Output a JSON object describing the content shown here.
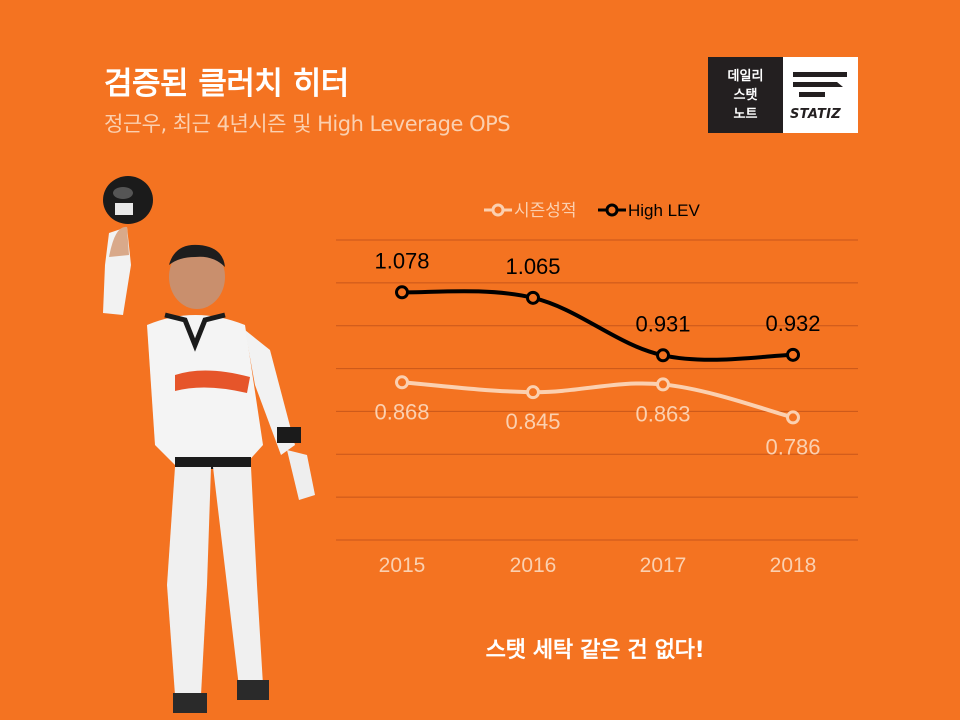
{
  "header": {
    "title": "검증된 클러치 히터",
    "subtitle": "정근우, 최근 4년시즌 및 High Leverage OPS"
  },
  "logo": {
    "left_lines": [
      "데일리",
      "스탯",
      "노트"
    ],
    "brand": "STATIZ"
  },
  "footer": {
    "tagline": "스탯 세탁 같은 건 없다!"
  },
  "colors": {
    "background": "#f47321",
    "season_line": "#fbd0b0",
    "high_lev_line": "#000000",
    "grid": "#c8561a"
  },
  "chart_data": {
    "type": "line",
    "categories": [
      "2015",
      "2016",
      "2017",
      "2018"
    ],
    "series": [
      {
        "name": "시즌성적",
        "values": [
          0.868,
          0.845,
          0.863,
          0.786
        ],
        "labels": [
          "0.868",
          "0.845",
          "0.863",
          "0.786"
        ]
      },
      {
        "name": "High LEV",
        "values": [
          1.078,
          1.065,
          0.931,
          0.932
        ],
        "labels": [
          "1.078",
          "1.065",
          "0.931",
          "0.932"
        ]
      }
    ],
    "ylim": [
      0.5,
      1.2
    ],
    "grid": true,
    "legend": "top",
    "xlabel": "",
    "ylabel": ""
  }
}
